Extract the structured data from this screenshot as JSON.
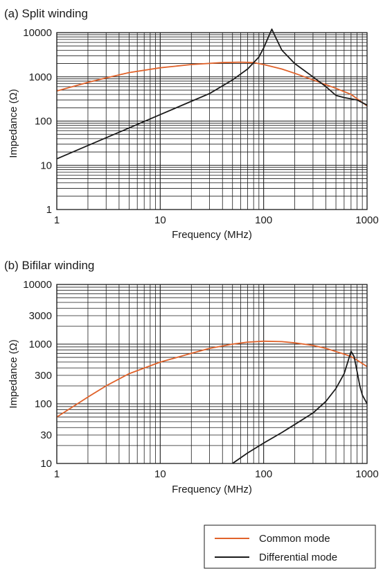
{
  "colors": {
    "common": "#e0622a",
    "differential": "#1a1a1a",
    "grid": "#1a1a1a"
  },
  "legend": {
    "placement": "bottom-right",
    "common_label": "Common mode",
    "differential_label": "Differential mode"
  },
  "chart_data": [
    {
      "type": "line",
      "title": "(a) Split winding",
      "xlabel": "Frequency (MHz)",
      "ylabel": "Impedance (Ω)",
      "x_scale": "log",
      "y_scale": "log",
      "xlim": [
        1,
        1000
      ],
      "ylim": [
        1,
        10000
      ],
      "x_ticks": [
        1,
        10,
        100,
        1000
      ],
      "x_tick_labels": [
        "1",
        "10",
        "100",
        "1000"
      ],
      "y_ticks": [
        1,
        10,
        100,
        1000,
        10000
      ],
      "y_tick_labels": [
        "1",
        "10",
        "100",
        "1000",
        "10000"
      ],
      "grid": true,
      "series": [
        {
          "name": "Common mode",
          "x": [
            1,
            2,
            3,
            5,
            10,
            20,
            40,
            60,
            80,
            100,
            150,
            200,
            300,
            500,
            700,
            1000
          ],
          "y": [
            480,
            750,
            950,
            1250,
            1600,
            1900,
            2100,
            2150,
            2100,
            1900,
            1500,
            1200,
            850,
            550,
            400,
            220
          ]
        },
        {
          "name": "Differential mode",
          "x": [
            1,
            2,
            5,
            10,
            20,
            30,
            50,
            70,
            90,
            100,
            110,
            120,
            130,
            150,
            200,
            300,
            400,
            500,
            600,
            800,
            1000
          ],
          "y": [
            14,
            28,
            70,
            140,
            280,
            420,
            850,
            1500,
            2800,
            4500,
            7500,
            12000,
            8000,
            4000,
            2000,
            1000,
            600,
            380,
            340,
            300,
            230
          ]
        }
      ]
    },
    {
      "type": "line",
      "title": "(b) Bifilar winding",
      "xlabel": "Frequency (MHz)",
      "ylabel": "Impedance (Ω)",
      "x_scale": "log",
      "y_scale": "log",
      "xlim": [
        1,
        1000
      ],
      "ylim": [
        10,
        10000
      ],
      "x_ticks": [
        1,
        10,
        100,
        1000
      ],
      "x_tick_labels": [
        "1",
        "10",
        "100",
        "1000"
      ],
      "y_ticks": [
        10,
        30,
        100,
        300,
        1000,
        3000,
        10000
      ],
      "y_tick_labels": [
        "10",
        "30",
        "100",
        "300",
        "1000",
        "3000",
        "10000"
      ],
      "grid": true,
      "series": [
        {
          "name": "Common mode",
          "x": [
            1,
            2,
            3,
            5,
            10,
            20,
            30,
            50,
            70,
            100,
            150,
            200,
            300,
            400,
            500,
            600,
            700,
            800,
            1000
          ],
          "y": [
            60,
            130,
            200,
            320,
            500,
            700,
            850,
            1000,
            1080,
            1120,
            1100,
            1050,
            950,
            850,
            750,
            680,
            620,
            540,
            420
          ]
        },
        {
          "name": "Differential mode",
          "x": [
            50,
            70,
            100,
            150,
            200,
            300,
            400,
            500,
            600,
            650,
            700,
            750,
            800,
            850,
            900,
            1000
          ],
          "y": [
            10,
            15,
            22,
            33,
            45,
            70,
            110,
            180,
            320,
            500,
            760,
            620,
            350,
            200,
            140,
            100
          ]
        }
      ]
    }
  ]
}
